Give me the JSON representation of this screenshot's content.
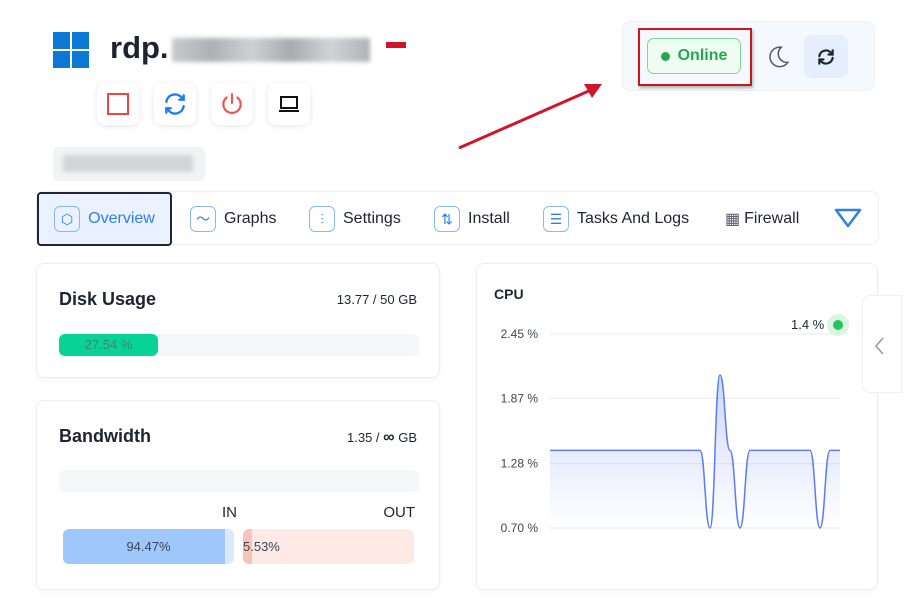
{
  "header": {
    "title_prefix": "rdp.",
    "os_icon": "windows-logo-icon"
  },
  "actions": [
    {
      "icon": "stop-icon"
    },
    {
      "icon": "restart-icon"
    },
    {
      "icon": "power-icon"
    },
    {
      "icon": "console-icon"
    }
  ],
  "status": {
    "label": "Online",
    "color": "#23a84e",
    "theme_icon": "moon-icon",
    "refresh_icon": "refresh-icon"
  },
  "tabs": [
    {
      "label": "Overview",
      "icon": "cube-icon",
      "active": true
    },
    {
      "label": "Graphs",
      "icon": "chart-line-icon"
    },
    {
      "label": "Settings",
      "icon": "sliders-icon"
    },
    {
      "label": "Install",
      "icon": "git-compare-icon"
    },
    {
      "label": "Tasks And Logs",
      "icon": "checklist-icon"
    },
    {
      "label": "Firewall",
      "icon": "firewall-icon"
    }
  ],
  "disk": {
    "title": "Disk Usage",
    "usage": "13.77 / 50 GB",
    "percent_label": "27.54 %",
    "percent": 27.54,
    "color": "#06d394"
  },
  "bandwidth": {
    "title": "Bandwidth",
    "used": "1.35 /",
    "unit": "GB",
    "limit_symbol": "∞",
    "in_label": "IN",
    "out_label": "OUT",
    "in_percent_label": "94.47%",
    "out_percent_label": "5.53%",
    "in_percent": 94.47,
    "out_percent": 5.53
  },
  "chart_data": {
    "type": "area",
    "title": "CPU",
    "current_label": "1.4 %",
    "y_ticks": [
      "2.45 %",
      "1.87 %",
      "1.28 %",
      "0.70 %"
    ],
    "ylim": [
      0.7,
      2.45
    ],
    "grid": true,
    "color": "#5b7cf5",
    "values": [
      1.4,
      1.4,
      1.4,
      1.4,
      1.4,
      1.4,
      1.4,
      1.4,
      1.4,
      1.4,
      1.4,
      1.4,
      1.4,
      1.4,
      1.4,
      1.4,
      0.7,
      2.08,
      1.4,
      0.7,
      1.4,
      1.4,
      1.4,
      1.4,
      1.4,
      1.4,
      1.4,
      0.7,
      1.4,
      1.4
    ]
  }
}
